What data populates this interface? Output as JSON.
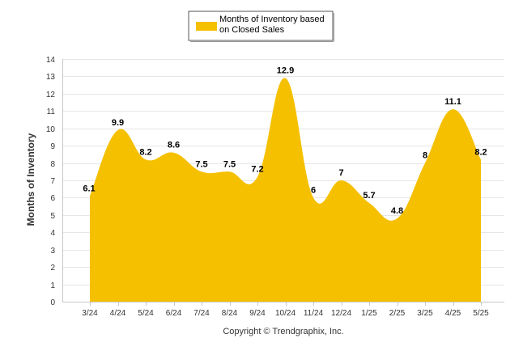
{
  "chart_data": {
    "type": "area",
    "categories": [
      "3/24",
      "4/24",
      "5/24",
      "6/24",
      "7/24",
      "8/24",
      "9/24",
      "10/24",
      "11/24",
      "12/24",
      "1/25",
      "2/25",
      "3/25",
      "4/25",
      "5/25"
    ],
    "series": [
      {
        "name": "Months of Inventory based on Closed Sales",
        "values": [
          6.1,
          9.9,
          8.2,
          8.6,
          7.5,
          7.5,
          7.2,
          12.9,
          6,
          7,
          5.7,
          4.8,
          8,
          11.1,
          8.2
        ]
      }
    ],
    "data_labels": [
      "6.1",
      "9.9",
      "8.2",
      "8.6",
      "7.5",
      "7.5",
      "7.2",
      "12.9",
      "6",
      "7",
      "5.7",
      "4.8",
      "8",
      "11.1",
      "8.2"
    ],
    "ylabel": "Months of Inventory",
    "xlabel": "",
    "ylim": [
      0,
      14
    ],
    "yticks": [
      "0",
      "1",
      "2",
      "3",
      "4",
      "5",
      "6",
      "7",
      "8",
      "9",
      "10",
      "11",
      "12",
      "13",
      "14"
    ],
    "grid": true,
    "legend_position": "top-center",
    "legend_lines": [
      "Months of Inventory based",
      "on Closed Sales"
    ],
    "colors": {
      "fill": "#F5C000",
      "grid": "#E6E6E6",
      "axis": "#C8C8C8"
    }
  },
  "footer": {
    "copyright": "Copyright © Trendgraphix, Inc."
  }
}
